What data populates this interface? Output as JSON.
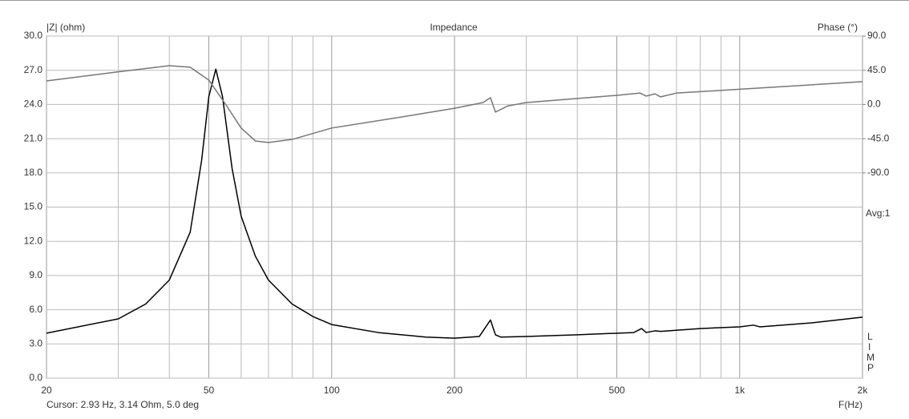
{
  "chart_data": {
    "type": "line",
    "title": "Impedance",
    "ylabel": "|Z| (ohm)",
    "y2label": "Phase (°)",
    "xlabel": "F(Hz)",
    "annotations": [
      "Avg:1",
      "L",
      "I",
      "M",
      "P"
    ],
    "cursor": "Cursor: 2.93 Hz, 3.14 Ohm, 5.0 deg",
    "xscale": "log",
    "grid": true,
    "xlim": [
      20,
      2000
    ],
    "xticks": [
      20,
      50,
      100,
      200,
      500,
      {
        "value": 1000,
        "label": "1k"
      },
      {
        "value": 2000,
        "label": "2k"
      }
    ],
    "xminor": [
      30,
      40,
      60,
      70,
      80,
      90,
      300,
      400,
      600,
      700,
      800,
      900
    ],
    "ylim": [
      0,
      30
    ],
    "yticks": [
      {
        "value": 0,
        "label": "0.0"
      },
      {
        "value": 3,
        "label": "3.0"
      },
      {
        "value": 6,
        "label": "6.0"
      },
      {
        "value": 9,
        "label": "9.0"
      },
      {
        "value": 12,
        "label": "12.0"
      },
      {
        "value": 15,
        "label": "15.0"
      },
      {
        "value": 18,
        "label": "18.0"
      },
      {
        "value": 21,
        "label": "21.0"
      },
      {
        "value": 24,
        "label": "24.0"
      },
      {
        "value": 27,
        "label": "27.0"
      },
      {
        "value": 30,
        "label": "30.0"
      }
    ],
    "y2lim": [
      -360,
      90
    ],
    "y2ticks": [
      {
        "value": 90,
        "label": "90.0"
      },
      {
        "value": 45,
        "label": "45.0"
      },
      {
        "value": 0,
        "label": "0.0"
      },
      {
        "value": -45,
        "label": "-45.0"
      },
      {
        "value": -90,
        "label": "-90.0"
      }
    ],
    "series": [
      {
        "name": "Impedance",
        "color": "#000000",
        "x": [
          20,
          30,
          35,
          40,
          45,
          48,
          50,
          52,
          54,
          57,
          60,
          65,
          70,
          80,
          90,
          100,
          130,
          170,
          200,
          230,
          245,
          252,
          260,
          300,
          400,
          550,
          575,
          590,
          620,
          640,
          800,
          1000,
          1080,
          1120,
          1500,
          2000
        ],
        "values": [
          3.94,
          5.2,
          6.5,
          8.6,
          12.8,
          19.1,
          24.7,
          27.1,
          24.7,
          18.4,
          14.2,
          10.7,
          8.6,
          6.5,
          5.4,
          4.7,
          4.0,
          3.6,
          3.5,
          3.65,
          5.1,
          3.8,
          3.6,
          3.65,
          3.8,
          4.0,
          4.35,
          4.0,
          4.15,
          4.1,
          4.35,
          4.5,
          4.65,
          4.5,
          4.85,
          5.35
        ]
      },
      {
        "name": "Phase",
        "color": "#777777",
        "axis": "y2",
        "x": [
          20,
          30,
          40,
          45,
          50,
          55,
          60,
          65,
          70,
          80,
          100,
          150,
          200,
          235,
          245,
          252,
          270,
          300,
          500,
          570,
          590,
          620,
          640,
          700,
          1000,
          2000
        ],
        "values": [
          31,
          43,
          51,
          49,
          32,
          0,
          -31,
          -48,
          -50,
          -46,
          -31,
          -16,
          -5,
          2.5,
          9,
          -10,
          -2,
          2.5,
          12,
          15,
          11,
          14,
          10,
          15,
          20,
          30
        ]
      }
    ]
  }
}
